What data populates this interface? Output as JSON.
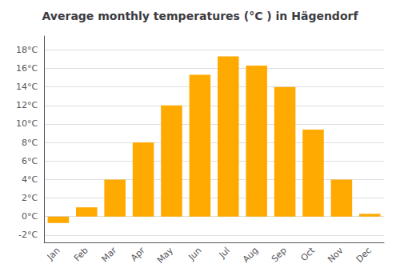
{
  "chart_data": {
    "type": "bar",
    "title": "Average monthly temperatures (°C ) in Hägendorf",
    "categories": [
      "Jan",
      "Feb",
      "Mar",
      "Apr",
      "May",
      "Jun",
      "Jul",
      "Aug",
      "Sep",
      "Oct",
      "Nov",
      "Dec"
    ],
    "values": [
      -0.7,
      1.0,
      4.0,
      8.0,
      12.0,
      15.3,
      17.3,
      16.3,
      14.0,
      9.4,
      4.0,
      0.3
    ],
    "color": "#FFAA00",
    "ylim": [
      -2.8,
      19.5
    ],
    "yticks": [
      {
        "value": -2,
        "label": "-2°C"
      },
      {
        "value": 0,
        "label": "0°C"
      },
      {
        "value": 2,
        "label": "2°C"
      },
      {
        "value": 4,
        "label": "4°C"
      },
      {
        "value": 6,
        "label": "6°C"
      },
      {
        "value": 8,
        "label": "8°C"
      },
      {
        "value": 10,
        "label": "10°C"
      },
      {
        "value": 12,
        "label": "12°C"
      },
      {
        "value": 14,
        "label": "14°C"
      },
      {
        "value": 16,
        "label": "16°C"
      },
      {
        "value": 18,
        "label": "18°C"
      }
    ],
    "grid": true
  }
}
